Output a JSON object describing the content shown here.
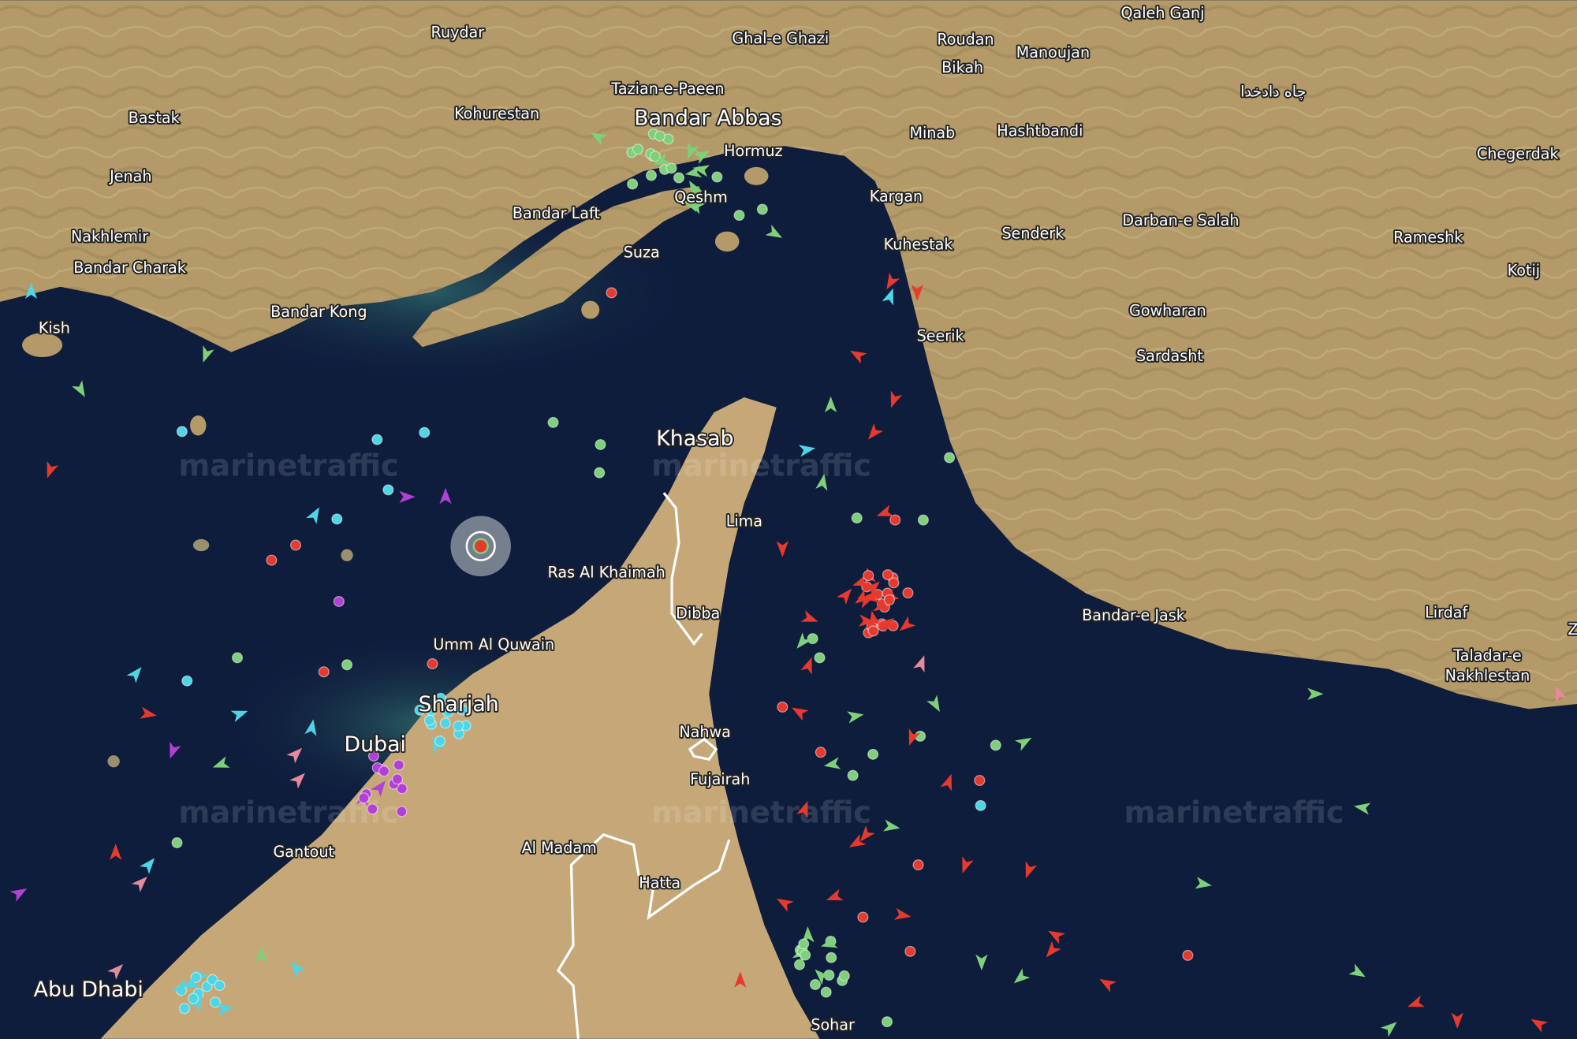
{
  "map": {
    "watermark": "marinetraffic",
    "colors": {
      "sea": "#0f1d3d",
      "land": "#b59c6c",
      "land_dark": "#8f7a4e",
      "border": "#ffffff",
      "cargo_vessel": "#7ed07a",
      "tanker_vessel": "#e8392e",
      "passenger_vessel": "#4fd6e6",
      "pleasure_vessel": "#b23fd6",
      "other_vessel": "#e58a9a",
      "selected_vessel_ring": "#9aa0aa"
    },
    "places": [
      {
        "name": "Ruydar"
      },
      {
        "name": "Ghal-e Ghazi"
      },
      {
        "name": "Roudan"
      },
      {
        "name": "Bikah"
      },
      {
        "name": "Manoujan"
      },
      {
        "name": "Qaleh Ganj"
      },
      {
        "name": "چاه دادخدا"
      },
      {
        "name": "Bastak"
      },
      {
        "name": "Kohurestan"
      },
      {
        "name": "Tazian-e-Paeen"
      },
      {
        "name": "Bandar Abbas"
      },
      {
        "name": "Hormuz"
      },
      {
        "name": "Minab"
      },
      {
        "name": "Hashtbandi"
      },
      {
        "name": "Chegerdak"
      },
      {
        "name": "Jenah"
      },
      {
        "name": "Qeshm"
      },
      {
        "name": "Kargan"
      },
      {
        "name": "Bandar Laft"
      },
      {
        "name": "Darban-e Salah"
      },
      {
        "name": "Nakhlemir"
      },
      {
        "name": "Suza"
      },
      {
        "name": "Kuhestak"
      },
      {
        "name": "Senderk"
      },
      {
        "name": "Rameshk"
      },
      {
        "name": "Bandar Charak"
      },
      {
        "name": "Kotij"
      },
      {
        "name": "Bandar Kong"
      },
      {
        "name": "Gowharan"
      },
      {
        "name": "Kish"
      },
      {
        "name": "Seerik"
      },
      {
        "name": "Sardasht"
      },
      {
        "name": "Khasab"
      },
      {
        "name": "Lima"
      },
      {
        "name": "Ras Al Khaimah"
      },
      {
        "name": "Dibba"
      },
      {
        "name": "Bandar-e Jask"
      },
      {
        "name": "Lirdaf"
      },
      {
        "name": "Umm Al Quwain"
      },
      {
        "name": "Taladar-e"
      },
      {
        "name": "Nakhlestan"
      },
      {
        "name": "Z"
      },
      {
        "name": "Sharjah"
      },
      {
        "name": "Dubai"
      },
      {
        "name": "Nahwa"
      },
      {
        "name": "Fujairah"
      },
      {
        "name": "Gantout"
      },
      {
        "name": "Al Madam"
      },
      {
        "name": "Hatta"
      },
      {
        "name": "Abu Dhabi"
      },
      {
        "name": "Sohar"
      }
    ]
  }
}
